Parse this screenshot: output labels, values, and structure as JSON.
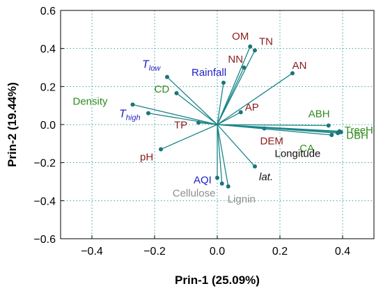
{
  "colors": {
    "vector": "#1b8488",
    "dot": "#1b7478",
    "grid": "#3a9ca0",
    "red_group": "#8b1a1a",
    "green_group": "#2e8b1e",
    "blue_group": "#1c1cc8",
    "gray_group": "#8c8c8c",
    "black_group": "#111111"
  },
  "chart_data": {
    "type": "scatter",
    "subtype": "biplot",
    "xlabel": "Prin-1 (25.09%)",
    "ylabel": "Prin-2 (19.44%)",
    "xlim": [
      -0.5,
      0.5
    ],
    "ylim": [
      -0.6,
      0.6
    ],
    "xticks": [
      -0.4,
      -0.2,
      0.0,
      0.2,
      0.4
    ],
    "xtick_labels": [
      "−0.4",
      "−0.2",
      "0.0",
      "0.2",
      "0.4"
    ],
    "yticks": [
      -0.6,
      -0.4,
      -0.2,
      0.0,
      0.2,
      0.4,
      0.6
    ],
    "ytick_labels": [
      "−0.6",
      "−0.4",
      "−0.2",
      "0.0",
      "0.2",
      "0.4",
      "0.6"
    ],
    "grid": true,
    "vectors": [
      {
        "label": "OM",
        "x": 0.105,
        "y": 0.41,
        "group": "red"
      },
      {
        "label": "TN",
        "x": 0.12,
        "y": 0.39,
        "group": "red"
      },
      {
        "label": "NN",
        "x": 0.085,
        "y": 0.3,
        "group": "red"
      },
      {
        "label": "AN",
        "x": 0.24,
        "y": 0.27,
        "group": "red"
      },
      {
        "label": "AP",
        "x": 0.075,
        "y": 0.065,
        "group": "red"
      },
      {
        "label": "DEM",
        "x": 0.15,
        "y": -0.02,
        "group": "red"
      },
      {
        "label": "TP",
        "x": -0.06,
        "y": 0.01,
        "group": "red"
      },
      {
        "label": "pH",
        "x": -0.18,
        "y": -0.13,
        "group": "red"
      },
      {
        "label": "T",
        "sub": "low",
        "x": -0.16,
        "y": 0.25,
        "group": "blue"
      },
      {
        "label": "Rainfall",
        "x": 0.02,
        "y": 0.22,
        "group": "blue"
      },
      {
        "label": "T",
        "sub": "high",
        "x": -0.22,
        "y": 0.06,
        "group": "blue"
      },
      {
        "label": "AQI",
        "x": 0.0,
        "y": -0.28,
        "group": "blue"
      },
      {
        "label": "Density",
        "x": -0.27,
        "y": 0.105,
        "group": "green"
      },
      {
        "label": "CD",
        "x": -0.13,
        "y": 0.165,
        "group": "green"
      },
      {
        "label": "ABH",
        "x": 0.355,
        "y": -0.005,
        "group": "green"
      },
      {
        "label": "TreeH",
        "x": 0.395,
        "y": -0.04,
        "group": "green"
      },
      {
        "label": "DBH",
        "x": 0.385,
        "y": -0.045,
        "group": "green"
      },
      {
        "label": "CA",
        "x": 0.365,
        "y": -0.055,
        "group": "green"
      },
      {
        "label": "Longitude",
        "x": 0.39,
        "y": -0.035,
        "group": "black"
      },
      {
        "label": "lat.",
        "x": 0.12,
        "y": -0.22,
        "group": "black"
      },
      {
        "label": "Cellulose",
        "x": 0.015,
        "y": -0.31,
        "group": "gray"
      },
      {
        "label": "Lignin",
        "x": 0.035,
        "y": -0.325,
        "group": "gray"
      }
    ]
  }
}
